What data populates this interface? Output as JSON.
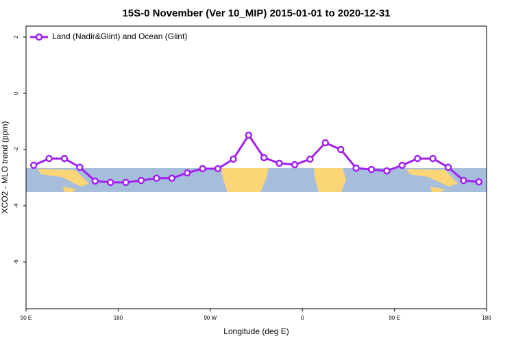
{
  "chart_data": {
    "type": "line",
    "title": "15S-0 November (Ver 10_MIP)   2015-01-01 to 2020-12-31",
    "x_label": "Longitude (deg E)",
    "y_label": "XCO2 - MLO trend (ppm)",
    "legend": "topleft",
    "xlim": [
      90,
      540
    ],
    "ylim": [
      -7.66,
      2.39
    ],
    "xticks": [
      {
        "value": 90,
        "label": "90 E"
      },
      180,
      {
        "value": 270,
        "label": "90 W"
      },
      {
        "value": 360,
        "label": "0"
      },
      {
        "value": 450,
        "label": "90 E"
      },
      {
        "value": 540,
        "label": "180"
      }
    ],
    "yticks": [
      2,
      0,
      -2,
      -4,
      -6
    ],
    "x": [
      97.5,
      112.5,
      127.5,
      142.5,
      157.5,
      172.5,
      187.5,
      202.5,
      217.5,
      232.5,
      247.5,
      262.5,
      277.5,
      292.5,
      307.5,
      322.5,
      337.5,
      352.5,
      367.5,
      382.5,
      397.5,
      412.5,
      427.5,
      442.5,
      457.5,
      472.5,
      487.5,
      502.5,
      517.5,
      532.5
    ],
    "series": [
      {
        "name": "Land (Nadir&Glint) and Ocean (Glint)",
        "color": "#a020f0",
        "values": [
          -2.56,
          -2.32,
          -2.32,
          -2.63,
          -3.12,
          -3.17,
          -3.17,
          -3.1,
          -3.02,
          -3.02,
          -2.83,
          -2.68,
          -2.68,
          -2.34,
          -1.49,
          -2.29,
          -2.49,
          -2.54,
          -2.34,
          -1.76,
          -2.0,
          -2.66,
          -2.71,
          -2.76,
          -2.56,
          -2.32,
          -2.32,
          -2.63,
          -3.1,
          -3.15
        ]
      }
    ]
  }
}
